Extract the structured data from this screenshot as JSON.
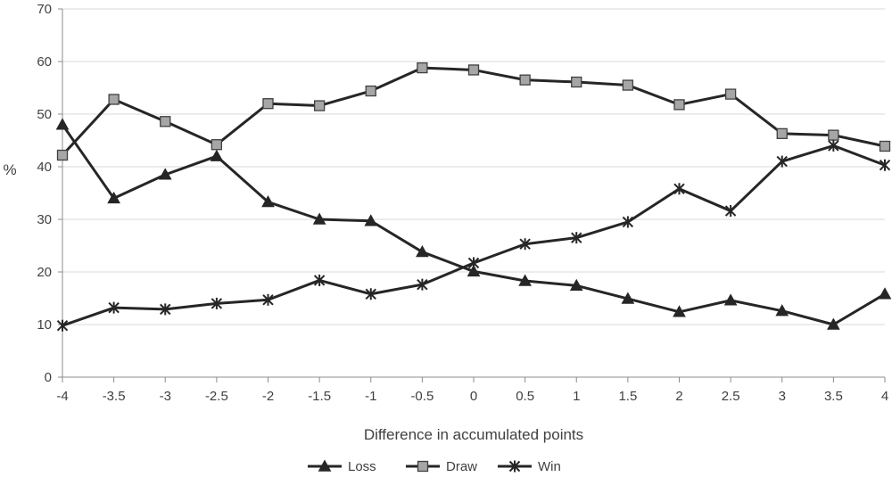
{
  "chart_data": {
    "type": "line",
    "title": "",
    "xlabel": "Difference in accumulated points",
    "ylabel": "%",
    "x": [
      -4,
      -3.5,
      -3,
      -2.5,
      -2,
      -1.5,
      -1,
      -0.5,
      0,
      0.5,
      1,
      1.5,
      2,
      2.5,
      3,
      3.5,
      4
    ],
    "x_tick_labels": [
      "-4",
      "-3.5",
      "-3",
      "-2.5",
      "-2",
      "-1.5",
      "-1",
      "-0.5",
      "0",
      "0.5",
      "1",
      "1.5",
      "2",
      "2.5",
      "3",
      "3.5",
      "4"
    ],
    "ylim": [
      0,
      70
    ],
    "y_ticks": [
      0,
      10,
      20,
      30,
      40,
      50,
      60,
      70
    ],
    "grid": true,
    "legend_position": "bottom",
    "series": [
      {
        "name": "Loss",
        "marker": "triangle",
        "color": "#262626",
        "values": [
          48,
          34,
          38.5,
          42,
          33.3,
          30,
          29.7,
          23.8,
          20.1,
          18.3,
          17.4,
          14.9,
          12.4,
          14.6,
          12.6,
          10,
          15.8
        ]
      },
      {
        "name": "Draw",
        "marker": "square",
        "color": "#262626",
        "marker_fill": "#a6a6a6",
        "values": [
          42.2,
          52.8,
          48.6,
          44.2,
          52,
          51.6,
          54.4,
          58.8,
          58.4,
          56.5,
          56.1,
          55.5,
          51.8,
          53.8,
          46.3,
          46,
          43.9
        ]
      },
      {
        "name": "Win",
        "marker": "star",
        "color": "#262626",
        "values": [
          9.8,
          13.2,
          12.9,
          14,
          14.7,
          18.4,
          15.8,
          17.6,
          21.7,
          25.3,
          26.5,
          29.5,
          35.8,
          31.6,
          41,
          44,
          40.3
        ]
      }
    ]
  }
}
